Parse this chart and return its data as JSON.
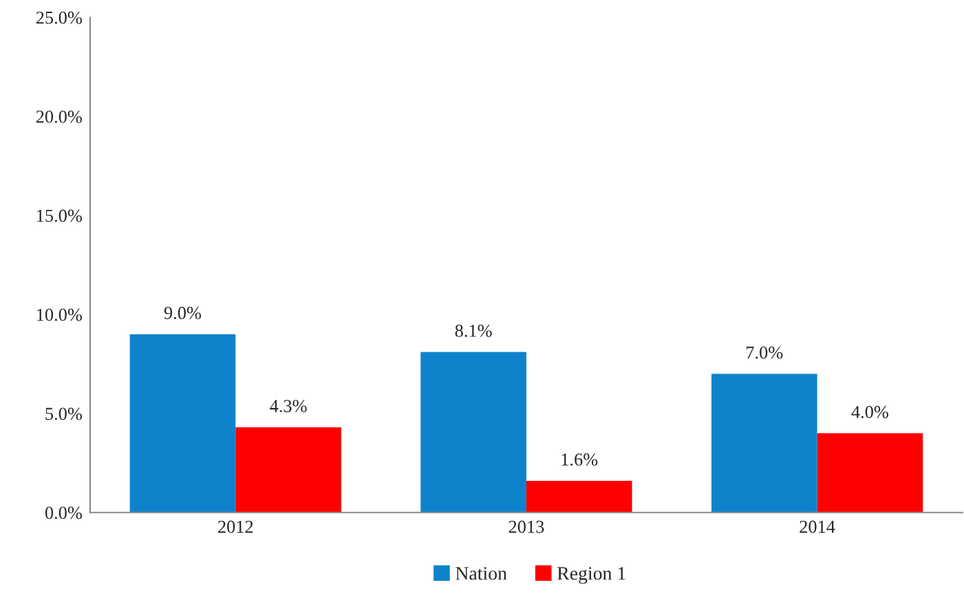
{
  "chart_data": {
    "type": "bar",
    "categories": [
      "2012",
      "2013",
      "2014"
    ],
    "series": [
      {
        "name": "Nation",
        "color": "#0e83cb",
        "values": [
          9.0,
          8.1,
          7.0
        ],
        "value_labels": [
          "9.0%",
          "8.1%",
          "7.0%"
        ]
      },
      {
        "name": "Region 1",
        "color": "#ff0000",
        "values": [
          4.3,
          1.6,
          4.0
        ],
        "value_labels": [
          "4.3%",
          "1.6%",
          "4.0%"
        ]
      }
    ],
    "ylim": [
      0,
      25
    ],
    "yticks": [
      {
        "value": 0,
        "label": "0.0%"
      },
      {
        "value": 5,
        "label": "5.0%"
      },
      {
        "value": 10,
        "label": "10.0%"
      },
      {
        "value": 15,
        "label": "15.0%"
      },
      {
        "value": 20,
        "label": "20.0%"
      },
      {
        "value": 25,
        "label": "25.0%"
      }
    ],
    "grid": false,
    "legend": "bottom"
  }
}
